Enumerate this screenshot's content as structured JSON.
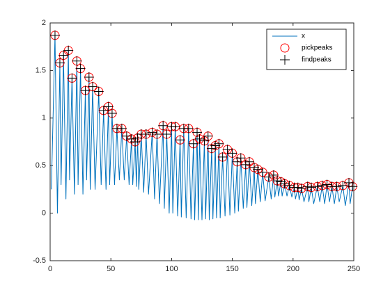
{
  "chart_data": {
    "type": "line",
    "xlim": [
      0,
      250
    ],
    "xticks": [
      0,
      50,
      100,
      150,
      200,
      250
    ],
    "ylim": [
      -0.5,
      2
    ],
    "yticks": [
      -0.5,
      0,
      0.5,
      1,
      1.5,
      2
    ],
    "legend": "northeast",
    "series": [
      {
        "name": "x",
        "color": "#0072bd",
        "marker": "none",
        "x": [
          1,
          4,
          6,
          8,
          9,
          11,
          13,
          15,
          16,
          18,
          20,
          22,
          23,
          25,
          27,
          29,
          30,
          32,
          33,
          35,
          37,
          40,
          42,
          44,
          46,
          48,
          49,
          51,
          53,
          55,
          57,
          59,
          61,
          63,
          65,
          67,
          68,
          70,
          71,
          72,
          73,
          75,
          77,
          79,
          81,
          84,
          86,
          88,
          90,
          93,
          94,
          96,
          98,
          100,
          101,
          103,
          105,
          107,
          108,
          110,
          112,
          114,
          116,
          118,
          119,
          121,
          122,
          123,
          125,
          127,
          128,
          130,
          131,
          133,
          134,
          136,
          137,
          139,
          140,
          142,
          144,
          146,
          148,
          150,
          152,
          154,
          155,
          157,
          159,
          161,
          162,
          164,
          166,
          168,
          169,
          171,
          173,
          175,
          177,
          180,
          182,
          184,
          185,
          187,
          188,
          190,
          191,
          193,
          195,
          197,
          199,
          201,
          202,
          204,
          205,
          207,
          209,
          212,
          213,
          215,
          217,
          220,
          222,
          224,
          226,
          228,
          230,
          232,
          234,
          236,
          238,
          241,
          243,
          246,
          247,
          249
        ],
        "values": [
          0.25,
          1.87,
          0,
          1.58,
          0.3,
          1.66,
          0.15,
          1.71,
          0.35,
          1.42,
          0.2,
          1.6,
          0.3,
          1.52,
          0.2,
          1.29,
          0.35,
          1.43,
          0.25,
          1.33,
          0.25,
          1.28,
          0.3,
          1.08,
          0.25,
          1.12,
          0.3,
          1.05,
          0.3,
          0.89,
          0.35,
          0.89,
          0.35,
          0.81,
          0.3,
          0.78,
          0.3,
          0.75,
          0.28,
          0.79,
          0.25,
          0.83,
          0.22,
          0.83,
          0.2,
          0.85,
          0.15,
          0.83,
          0.1,
          0.92,
          0.05,
          0.83,
          0,
          0.91,
          0,
          0.91,
          -0.03,
          0.77,
          -0.04,
          0.89,
          -0.05,
          0.89,
          -0.06,
          0.73,
          -0.07,
          0.85,
          -0.07,
          0.78,
          -0.07,
          0.76,
          -0.06,
          0.81,
          -0.07,
          0.68,
          -0.06,
          0.71,
          -0.05,
          0.73,
          -0.05,
          0.59,
          -0.03,
          0.67,
          -0.02,
          0.63,
          0,
          0.54,
          0.02,
          0.58,
          0.05,
          0.51,
          0.06,
          0.54,
          0.08,
          0.48,
          0.1,
          0.46,
          0.12,
          0.43,
          0.13,
          0.38,
          0.15,
          0.4,
          0.17,
          0.34,
          0.18,
          0.33,
          0.18,
          0.31,
          0.18,
          0.29,
          0.17,
          0.27,
          0.15,
          0.27,
          0.14,
          0.26,
          0.12,
          0.28,
          0.12,
          0.27,
          0.1,
          0.28,
          0.12,
          0.29,
          0.1,
          0.3,
          0.12,
          0.28,
          0.1,
          0.28,
          0.12,
          0.29,
          0.08,
          0.32,
          0.1,
          0.28
        ]
      },
      {
        "name": "pickpeaks",
        "color": "#ff0000",
        "marker": "circle",
        "x": [
          4,
          8,
          11,
          15,
          18,
          22,
          25,
          29,
          32,
          35,
          40,
          44,
          48,
          51,
          55,
          59,
          63,
          67,
          70,
          72,
          75,
          79,
          84,
          88,
          93,
          96,
          100,
          103,
          107,
          110,
          114,
          118,
          121,
          123,
          127,
          130,
          133,
          136,
          139,
          142,
          146,
          150,
          154,
          157,
          161,
          164,
          168,
          171,
          175,
          180,
          184,
          187,
          190,
          193,
          197,
          201,
          204,
          207,
          212,
          215,
          220,
          224,
          228,
          232,
          236,
          241,
          246,
          249
        ],
        "values": [
          1.87,
          1.58,
          1.66,
          1.71,
          1.42,
          1.6,
          1.52,
          1.29,
          1.43,
          1.33,
          1.28,
          1.08,
          1.12,
          1.05,
          0.89,
          0.89,
          0.81,
          0.78,
          0.75,
          0.79,
          0.83,
          0.83,
          0.85,
          0.83,
          0.92,
          0.83,
          0.91,
          0.91,
          0.77,
          0.89,
          0.89,
          0.73,
          0.85,
          0.78,
          0.76,
          0.81,
          0.68,
          0.71,
          0.73,
          0.59,
          0.67,
          0.63,
          0.54,
          0.58,
          0.51,
          0.54,
          0.48,
          0.46,
          0.43,
          0.38,
          0.4,
          0.34,
          0.33,
          0.31,
          0.29,
          0.27,
          0.27,
          0.26,
          0.28,
          0.27,
          0.28,
          0.29,
          0.3,
          0.28,
          0.28,
          0.29,
          0.32,
          0.28
        ]
      },
      {
        "name": "findpeaks",
        "color": "#000000",
        "marker": "plus",
        "x": [
          4,
          8,
          11,
          15,
          18,
          22,
          25,
          29,
          32,
          35,
          40,
          44,
          48,
          51,
          55,
          59,
          63,
          67,
          70,
          72,
          75,
          79,
          84,
          88,
          93,
          96,
          100,
          103,
          107,
          110,
          114,
          118,
          121,
          123,
          127,
          130,
          133,
          136,
          139,
          142,
          146,
          150,
          154,
          157,
          161,
          164,
          168,
          171,
          175,
          180,
          184,
          187,
          190,
          193,
          197,
          201,
          204,
          207,
          212,
          215,
          220,
          224,
          228,
          232,
          236,
          241,
          246,
          249
        ],
        "values": [
          1.87,
          1.58,
          1.66,
          1.71,
          1.42,
          1.6,
          1.52,
          1.29,
          1.43,
          1.33,
          1.28,
          1.08,
          1.12,
          1.05,
          0.89,
          0.89,
          0.81,
          0.78,
          0.75,
          0.79,
          0.83,
          0.83,
          0.85,
          0.83,
          0.92,
          0.83,
          0.91,
          0.91,
          0.77,
          0.89,
          0.89,
          0.73,
          0.85,
          0.78,
          0.76,
          0.81,
          0.68,
          0.71,
          0.73,
          0.59,
          0.67,
          0.63,
          0.54,
          0.58,
          0.51,
          0.54,
          0.48,
          0.46,
          0.43,
          0.38,
          0.4,
          0.34,
          0.33,
          0.31,
          0.29,
          0.27,
          0.27,
          0.26,
          0.28,
          0.27,
          0.28,
          0.29,
          0.3,
          0.28,
          0.28,
          0.29,
          0.32,
          0.28
        ]
      }
    ]
  }
}
